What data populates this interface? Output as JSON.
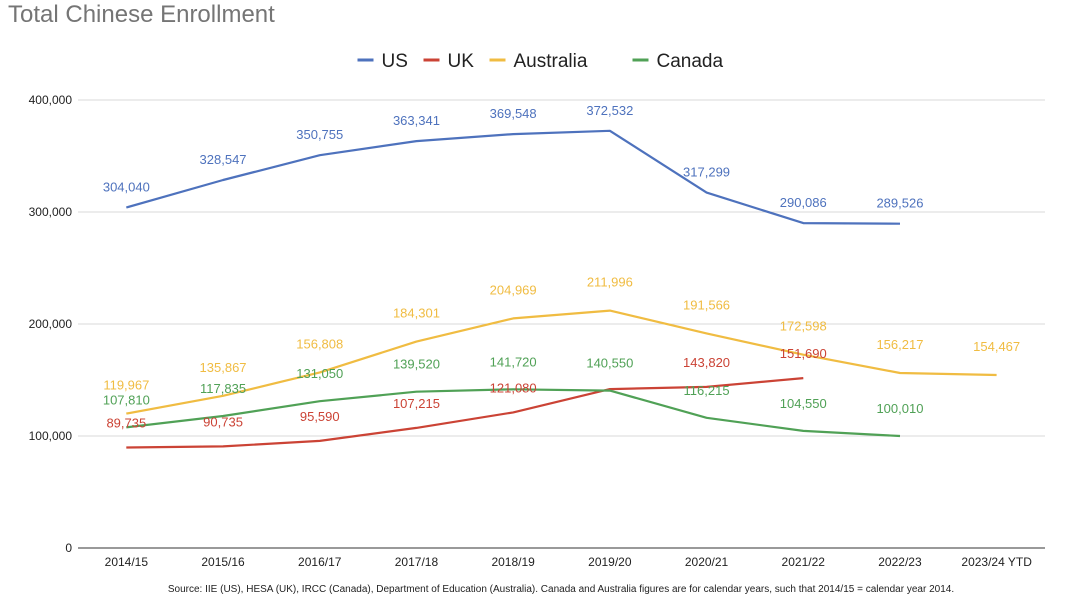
{
  "chart_data": {
    "type": "line",
    "title": "Total Chinese Enrollment",
    "categories": [
      "2014/15",
      "2015/16",
      "2016/17",
      "2017/18",
      "2018/19",
      "2019/20",
      "2020/21",
      "2021/22",
      "2022/23",
      "2023/24 YTD"
    ],
    "ylim": [
      0,
      400000
    ],
    "yticks": [
      0,
      100000,
      200000,
      300000,
      400000
    ],
    "ytick_labels": [
      "0",
      "100,000",
      "200,000",
      "300,000",
      "400,000"
    ],
    "grid": true,
    "legend_position": "top-center",
    "series": [
      {
        "name": "US",
        "color": "#4e72bd",
        "values": [
          304040,
          328547,
          350755,
          363341,
          369548,
          372532,
          317299,
          290086,
          289526,
          null
        ],
        "labels": [
          "304,040",
          "328,547",
          "350,755",
          "363,341",
          "369,548",
          "372,532",
          "317,299",
          "290,086",
          "289,526",
          ""
        ]
      },
      {
        "name": "UK",
        "color": "#cb4335",
        "values": [
          89735,
          90735,
          95590,
          107215,
          121080,
          141900,
          143820,
          151690,
          null,
          null
        ],
        "labels": [
          "89,735",
          "90,735",
          "95,590",
          "107,215",
          "121,080",
          "",
          "143,820",
          "151,690",
          "",
          ""
        ]
      },
      {
        "name": "Australia",
        "color": "#f0bc42",
        "values": [
          119967,
          135867,
          156808,
          184301,
          204969,
          211996,
          191566,
          172598,
          156217,
          154467
        ],
        "labels": [
          "119,967",
          "135,867",
          "156,808",
          "184,301",
          "204,969",
          "211,996",
          "191,566",
          "172,598",
          "156,217",
          "154,467"
        ]
      },
      {
        "name": "Canada",
        "color": "#50a156",
        "values": [
          107810,
          117835,
          131050,
          139520,
          141720,
          140550,
          116215,
          104550,
          100010,
          null
        ],
        "labels": [
          "107,810",
          "117,835",
          "131,050",
          "139,520",
          "141,720",
          "140,550",
          "116,215",
          "104,550",
          "100,010",
          ""
        ]
      }
    ],
    "source_note": "Source: IIE (US), HESA (UK), IRCC (Canada), Department of Education (Australia). Canada and Australia figures are for calendar years, such that 2014/15 = calendar year 2014."
  }
}
